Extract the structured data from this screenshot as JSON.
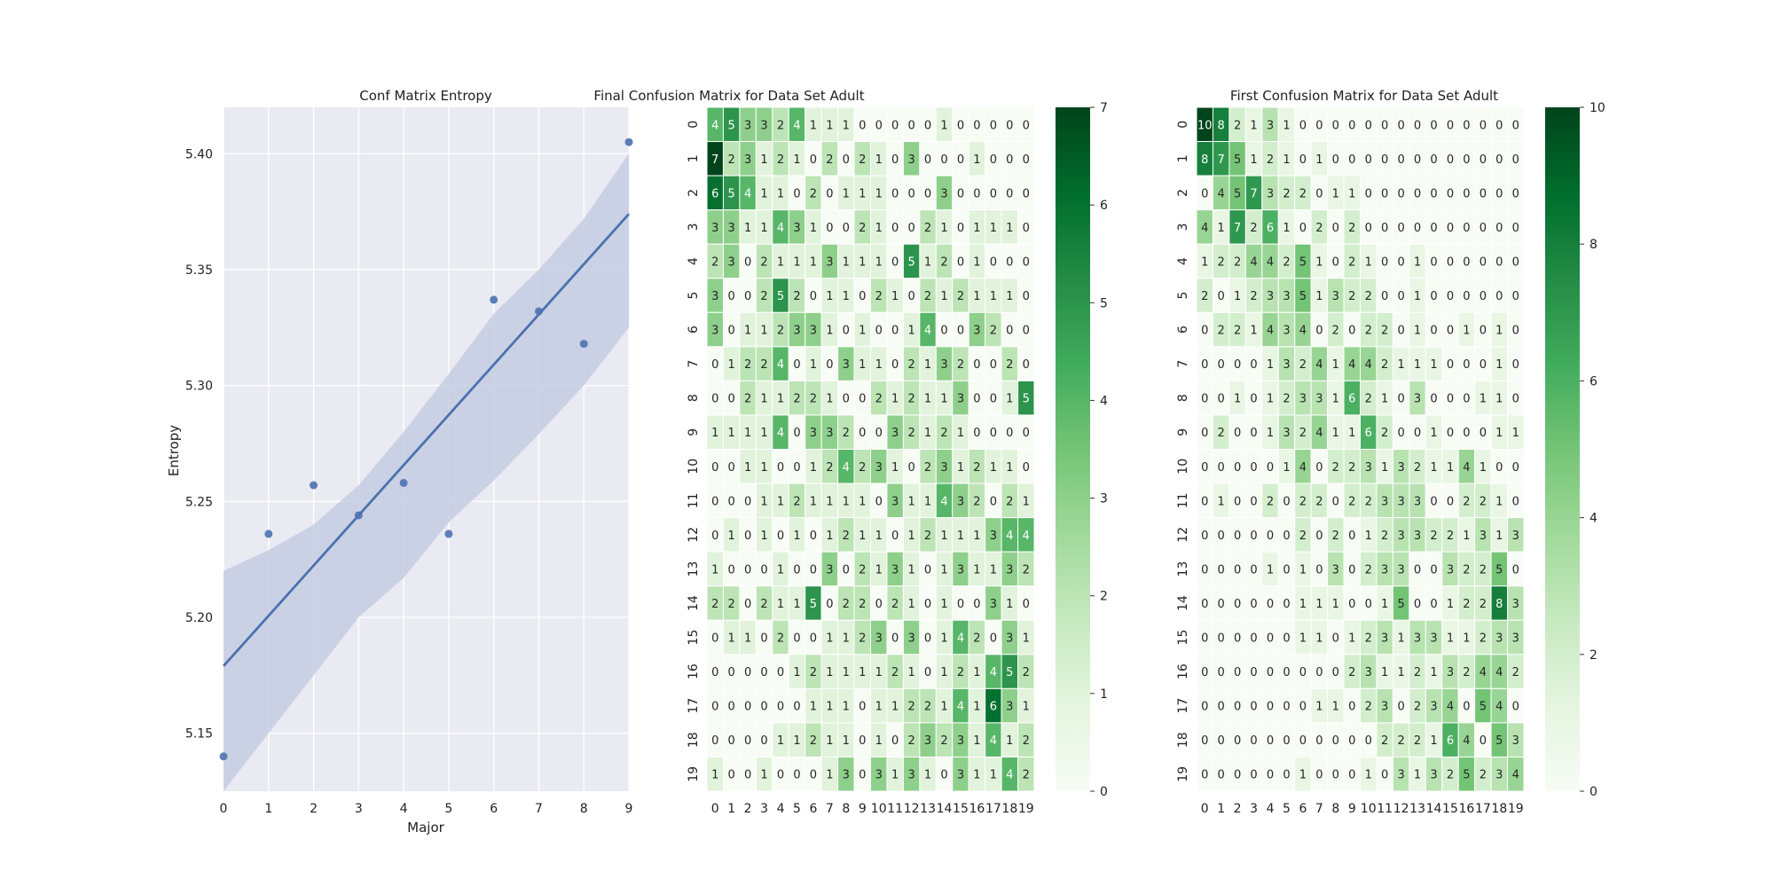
{
  "chart_data": [
    {
      "type": "scatter",
      "title": "Conf Matrix Entropy",
      "xlabel": "Major",
      "ylabel": "Entropy",
      "xlim": [
        0,
        9
      ],
      "ylim": [
        5.125,
        5.42
      ],
      "xticks": [
        0,
        1,
        2,
        3,
        4,
        5,
        6,
        7,
        8,
        9
      ],
      "yticks": [
        5.15,
        5.2,
        5.25,
        5.3,
        5.35,
        5.4
      ],
      "grid": true,
      "points": {
        "x": [
          0,
          1,
          2,
          3,
          4,
          5,
          6,
          7,
          8,
          9
        ],
        "y": [
          5.14,
          5.236,
          5.257,
          5.244,
          5.258,
          5.236,
          5.337,
          5.332,
          5.318,
          5.405
        ]
      },
      "regression_line": {
        "x": [
          0,
          9
        ],
        "y": [
          5.179,
          5.374
        ]
      },
      "confidence_band": {
        "x": [
          0,
          1,
          2,
          3,
          4,
          5,
          6,
          7,
          8,
          9
        ],
        "upper": [
          5.22,
          5.229,
          5.24,
          5.257,
          5.28,
          5.305,
          5.331,
          5.35,
          5.372,
          5.4
        ],
        "lower": [
          5.125,
          5.15,
          5.175,
          5.2,
          5.217,
          5.241,
          5.259,
          5.279,
          5.3,
          5.325
        ]
      },
      "colors": {
        "marker": "#4c72b0",
        "line": "#4c72b0",
        "band": "#c5cde3",
        "background": "#eaeaf2",
        "grid": "#ffffff"
      }
    },
    {
      "type": "heatmap",
      "title": "Final Confusion Matrix for Data Set Adult",
      "row_labels": [
        "0",
        "1",
        "2",
        "3",
        "4",
        "5",
        "6",
        "7",
        "8",
        "9",
        "10",
        "11",
        "12",
        "13",
        "14",
        "15",
        "16",
        "17",
        "18",
        "19"
      ],
      "col_labels": [
        "0",
        "1",
        "2",
        "3",
        "4",
        "5",
        "6",
        "7",
        "8",
        "9",
        "10",
        "11",
        "12",
        "13",
        "14",
        "15",
        "16",
        "17",
        "18",
        "19"
      ],
      "vmin": 0,
      "vmax": 7,
      "colorbar_ticks": [
        0,
        1,
        2,
        3,
        4,
        5,
        6,
        7
      ],
      "values": [
        [
          4,
          5,
          3,
          3,
          2,
          4,
          1,
          1,
          1,
          0,
          0,
          0,
          0,
          0,
          1,
          0,
          0,
          0,
          0,
          0
        ],
        [
          7,
          2,
          3,
          1,
          2,
          1,
          0,
          2,
          0,
          2,
          1,
          0,
          3,
          0,
          0,
          0,
          1,
          0,
          0,
          0
        ],
        [
          6,
          5,
          4,
          1,
          1,
          0,
          2,
          0,
          1,
          1,
          1,
          0,
          0,
          0,
          3,
          0,
          0,
          0,
          0,
          0
        ],
        [
          3,
          3,
          1,
          1,
          4,
          3,
          1,
          0,
          0,
          2,
          1,
          0,
          0,
          2,
          1,
          0,
          1,
          1,
          1,
          0
        ],
        [
          2,
          3,
          0,
          2,
          1,
          1,
          1,
          3,
          1,
          1,
          1,
          0,
          5,
          1,
          2,
          0,
          1,
          0,
          0,
          0
        ],
        [
          3,
          0,
          0,
          2,
          5,
          2,
          0,
          1,
          1,
          0,
          2,
          1,
          0,
          2,
          1,
          2,
          1,
          1,
          1,
          0
        ],
        [
          3,
          0,
          1,
          1,
          2,
          3,
          3,
          1,
          0,
          1,
          0,
          0,
          1,
          4,
          0,
          0,
          3,
          2,
          0,
          0
        ],
        [
          0,
          1,
          2,
          2,
          4,
          0,
          1,
          0,
          3,
          1,
          1,
          0,
          2,
          1,
          3,
          2,
          0,
          0,
          2,
          0
        ],
        [
          0,
          0,
          2,
          1,
          1,
          2,
          2,
          1,
          0,
          0,
          2,
          1,
          2,
          1,
          1,
          3,
          0,
          0,
          1,
          5
        ],
        [
          1,
          1,
          1,
          1,
          4,
          0,
          3,
          3,
          2,
          0,
          0,
          3,
          2,
          1,
          2,
          1,
          0,
          0,
          0,
          0
        ],
        [
          0,
          0,
          1,
          1,
          0,
          0,
          1,
          2,
          4,
          2,
          3,
          1,
          0,
          2,
          3,
          1,
          2,
          1,
          1,
          0
        ],
        [
          0,
          0,
          0,
          1,
          1,
          2,
          1,
          1,
          1,
          1,
          0,
          3,
          1,
          1,
          4,
          3,
          2,
          0,
          2,
          1
        ],
        [
          0,
          1,
          0,
          1,
          0,
          1,
          0,
          1,
          2,
          1,
          1,
          0,
          1,
          2,
          1,
          1,
          1,
          3,
          4,
          4
        ],
        [
          1,
          0,
          0,
          0,
          1,
          0,
          0,
          3,
          0,
          2,
          1,
          3,
          1,
          0,
          1,
          3,
          1,
          1,
          3,
          2
        ],
        [
          2,
          2,
          0,
          2,
          1,
          1,
          5,
          0,
          2,
          2,
          0,
          2,
          1,
          0,
          1,
          0,
          0,
          3,
          1,
          0
        ],
        [
          0,
          1,
          1,
          0,
          2,
          0,
          0,
          1,
          1,
          2,
          3,
          0,
          3,
          0,
          1,
          4,
          2,
          0,
          3,
          1
        ],
        [
          0,
          0,
          0,
          0,
          0,
          1,
          2,
          1,
          1,
          1,
          1,
          2,
          1,
          0,
          1,
          2,
          1,
          4,
          5,
          2
        ],
        [
          0,
          0,
          0,
          0,
          0,
          0,
          1,
          1,
          1,
          0,
          1,
          1,
          2,
          2,
          1,
          4,
          1,
          6,
          3,
          1
        ],
        [
          0,
          0,
          0,
          0,
          1,
          1,
          2,
          1,
          1,
          0,
          1,
          0,
          2,
          3,
          2,
          3,
          1,
          4,
          1,
          2
        ],
        [
          1,
          0,
          0,
          1,
          0,
          0,
          0,
          1,
          3,
          0,
          3,
          1,
          3,
          1,
          0,
          3,
          1,
          1,
          4,
          2
        ]
      ]
    },
    {
      "type": "heatmap",
      "title": "First Confusion Matrix for Data Set Adult",
      "row_labels": [
        "0",
        "1",
        "2",
        "3",
        "4",
        "5",
        "6",
        "7",
        "8",
        "9",
        "10",
        "11",
        "12",
        "13",
        "14",
        "15",
        "16",
        "17",
        "18",
        "19"
      ],
      "col_labels": [
        "0",
        "1",
        "2",
        "3",
        "4",
        "5",
        "6",
        "7",
        "8",
        "9",
        "10",
        "11",
        "12",
        "13",
        "14",
        "15",
        "16",
        "17",
        "18",
        "19"
      ],
      "vmin": 0,
      "vmax": 10,
      "colorbar_ticks": [
        0,
        2,
        4,
        6,
        8,
        10
      ],
      "values": [
        [
          10,
          8,
          2,
          1,
          3,
          1,
          0,
          0,
          0,
          0,
          0,
          0,
          0,
          0,
          0,
          0,
          0,
          0,
          0,
          0
        ],
        [
          8,
          7,
          5,
          1,
          2,
          1,
          0,
          1,
          0,
          0,
          0,
          0,
          0,
          0,
          0,
          0,
          0,
          0,
          0,
          0
        ],
        [
          0,
          4,
          5,
          7,
          3,
          2,
          2,
          0,
          1,
          1,
          0,
          0,
          0,
          0,
          0,
          0,
          0,
          0,
          0,
          0
        ],
        [
          4,
          1,
          7,
          2,
          6,
          1,
          0,
          2,
          0,
          2,
          0,
          0,
          0,
          0,
          0,
          0,
          0,
          0,
          0,
          0
        ],
        [
          1,
          2,
          2,
          4,
          4,
          2,
          5,
          1,
          0,
          2,
          1,
          0,
          0,
          1,
          0,
          0,
          0,
          0,
          0,
          0
        ],
        [
          2,
          0,
          1,
          2,
          3,
          3,
          5,
          1,
          3,
          2,
          2,
          0,
          0,
          1,
          0,
          0,
          0,
          0,
          0,
          0
        ],
        [
          0,
          2,
          2,
          1,
          4,
          3,
          4,
          0,
          2,
          0,
          2,
          2,
          0,
          1,
          0,
          0,
          1,
          0,
          1,
          0
        ],
        [
          0,
          0,
          0,
          0,
          1,
          3,
          2,
          4,
          1,
          4,
          4,
          2,
          1,
          1,
          1,
          0,
          0,
          0,
          1,
          0
        ],
        [
          0,
          0,
          1,
          0,
          1,
          2,
          3,
          3,
          1,
          6,
          2,
          1,
          0,
          3,
          0,
          0,
          0,
          1,
          1,
          0
        ],
        [
          0,
          2,
          0,
          0,
          1,
          3,
          2,
          4,
          1,
          1,
          6,
          2,
          0,
          0,
          1,
          0,
          0,
          0,
          1,
          1
        ],
        [
          0,
          0,
          0,
          0,
          0,
          1,
          4,
          0,
          2,
          2,
          3,
          1,
          3,
          2,
          1,
          1,
          4,
          1,
          0,
          0
        ],
        [
          0,
          1,
          0,
          0,
          2,
          0,
          2,
          2,
          0,
          2,
          2,
          3,
          3,
          3,
          0,
          0,
          2,
          2,
          1,
          0
        ],
        [
          0,
          0,
          0,
          0,
          0,
          0,
          2,
          0,
          2,
          0,
          1,
          2,
          3,
          3,
          2,
          2,
          1,
          3,
          1,
          3
        ],
        [
          0,
          0,
          0,
          0,
          1,
          0,
          1,
          0,
          3,
          0,
          2,
          3,
          3,
          0,
          0,
          3,
          2,
          2,
          5,
          0
        ],
        [
          0,
          0,
          0,
          0,
          0,
          0,
          1,
          1,
          1,
          0,
          0,
          1,
          5,
          0,
          0,
          1,
          2,
          2,
          8,
          3
        ],
        [
          0,
          0,
          0,
          0,
          0,
          0,
          1,
          1,
          0,
          1,
          2,
          3,
          1,
          3,
          3,
          1,
          1,
          2,
          3,
          3
        ],
        [
          0,
          0,
          0,
          0,
          0,
          0,
          0,
          0,
          0,
          2,
          3,
          1,
          1,
          2,
          1,
          3,
          2,
          4,
          4,
          2
        ],
        [
          0,
          0,
          0,
          0,
          0,
          0,
          0,
          1,
          1,
          0,
          2,
          3,
          0,
          2,
          3,
          4,
          0,
          5,
          4,
          0
        ],
        [
          0,
          0,
          0,
          0,
          0,
          0,
          0,
          0,
          0,
          0,
          0,
          2,
          2,
          2,
          1,
          6,
          4,
          0,
          5,
          3
        ],
        [
          0,
          0,
          0,
          0,
          0,
          0,
          1,
          0,
          0,
          0,
          1,
          0,
          3,
          1,
          3,
          2,
          5,
          2,
          3,
          4
        ]
      ]
    }
  ]
}
